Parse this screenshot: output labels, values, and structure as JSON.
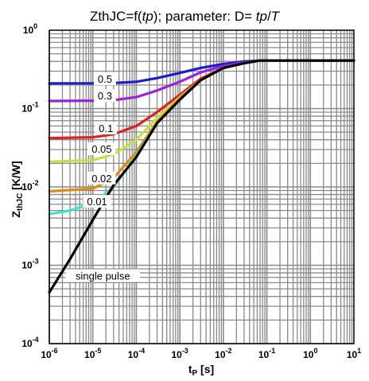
{
  "chart_data": {
    "type": "line",
    "title": {
      "prefix": "ZthJC=f(",
      "tp": "tp",
      "middle": "); parameter: D= ",
      "tp2": "tp",
      "slash": "/",
      "T": "T"
    },
    "xlabel": {
      "main": "t",
      "sub": "P",
      "unit": " [s]"
    },
    "ylabel": {
      "main": "Z",
      "sub": "thJC",
      "unit": " [K/W]"
    },
    "x_scale": "log",
    "y_scale": "log",
    "xlim": [
      1e-06,
      10
    ],
    "ylim": [
      0.0001,
      1
    ],
    "grid": true,
    "x_ticks": [
      {
        "base": "10",
        "exp": "-6",
        "value": 1e-06
      },
      {
        "base": "10",
        "exp": "-5",
        "value": 1e-05
      },
      {
        "base": "10",
        "exp": "-4",
        "value": 0.0001
      },
      {
        "base": "10",
        "exp": "-3",
        "value": 0.001
      },
      {
        "base": "10",
        "exp": "-2",
        "value": 0.01
      },
      {
        "base": "10",
        "exp": "-1",
        "value": 0.1
      },
      {
        "base": "10",
        "exp": "0",
        "value": 1
      },
      {
        "base": "10",
        "exp": "1",
        "value": 10
      }
    ],
    "y_ticks": [
      {
        "base": "10",
        "exp": "-4",
        "value": 0.0001
      },
      {
        "base": "10",
        "exp": "-3",
        "value": 0.001
      },
      {
        "base": "10",
        "exp": "-2",
        "value": 0.01
      },
      {
        "base": "10",
        "exp": "-1",
        "value": 0.1
      },
      {
        "base": "10",
        "exp": "0",
        "value": 1
      }
    ],
    "series": [
      {
        "name": "0.5",
        "color": "#1c1ccc",
        "points": [
          [
            1e-06,
            0.21
          ],
          [
            1e-05,
            0.21
          ],
          [
            3e-05,
            0.212
          ],
          [
            0.0001,
            0.22
          ],
          [
            0.0003,
            0.245
          ],
          [
            0.001,
            0.285
          ],
          [
            0.003,
            0.33
          ],
          [
            0.01,
            0.37
          ],
          [
            0.03,
            0.4
          ],
          [
            0.07,
            0.41
          ],
          [
            10,
            0.41
          ]
        ]
      },
      {
        "name": "0.3",
        "color": "#9a22dd",
        "points": [
          [
            1e-06,
            0.125
          ],
          [
            1e-05,
            0.126
          ],
          [
            3e-05,
            0.128
          ],
          [
            0.0001,
            0.14
          ],
          [
            0.0003,
            0.17
          ],
          [
            0.001,
            0.22
          ],
          [
            0.003,
            0.29
          ],
          [
            0.01,
            0.35
          ],
          [
            0.03,
            0.39
          ],
          [
            0.07,
            0.41
          ],
          [
            10,
            0.41
          ]
        ]
      },
      {
        "name": "0.1",
        "color": "#e02020",
        "points": [
          [
            1e-06,
            0.042
          ],
          [
            1e-05,
            0.043
          ],
          [
            3e-05,
            0.047
          ],
          [
            0.0001,
            0.06
          ],
          [
            0.0003,
            0.09
          ],
          [
            0.001,
            0.15
          ],
          [
            0.003,
            0.24
          ],
          [
            0.01,
            0.33
          ],
          [
            0.03,
            0.38
          ],
          [
            0.07,
            0.41
          ],
          [
            10,
            0.41
          ]
        ]
      },
      {
        "name": "0.05",
        "color": "#c6e040",
        "points": [
          [
            1e-06,
            0.021
          ],
          [
            1e-05,
            0.022
          ],
          [
            3e-05,
            0.026
          ],
          [
            0.0001,
            0.04
          ],
          [
            0.0003,
            0.076
          ],
          [
            0.001,
            0.14
          ],
          [
            0.003,
            0.23
          ],
          [
            0.01,
            0.33
          ],
          [
            0.03,
            0.38
          ],
          [
            0.07,
            0.41
          ],
          [
            10,
            0.41
          ]
        ]
      },
      {
        "name": "0.02",
        "color": "#e08a10",
        "points": [
          [
            1e-06,
            0.0088
          ],
          [
            1e-05,
            0.0095
          ],
          [
            3e-05,
            0.013
          ],
          [
            0.0001,
            0.028
          ],
          [
            0.0003,
            0.068
          ],
          [
            0.001,
            0.135
          ],
          [
            0.003,
            0.23
          ],
          [
            0.01,
            0.33
          ],
          [
            0.03,
            0.38
          ],
          [
            0.07,
            0.41
          ],
          [
            10,
            0.41
          ]
        ]
      },
      {
        "name": "0.01",
        "color": "#40e0d0",
        "points": [
          [
            1e-06,
            0.0045
          ],
          [
            3e-06,
            0.005
          ],
          [
            1e-05,
            0.0062
          ],
          [
            3e-05,
            0.01
          ],
          [
            0.0001,
            0.025
          ],
          [
            0.0003,
            0.065
          ],
          [
            0.001,
            0.13
          ],
          [
            0.003,
            0.23
          ],
          [
            0.01,
            0.33
          ],
          [
            0.03,
            0.38
          ],
          [
            0.07,
            0.41
          ],
          [
            10,
            0.41
          ]
        ]
      },
      {
        "name": "single pulse",
        "color": "#000000",
        "points": [
          [
            1e-06,
            0.00045
          ],
          [
            3e-06,
            0.0012
          ],
          [
            1e-05,
            0.0038
          ],
          [
            3e-05,
            0.0105
          ],
          [
            0.0001,
            0.024
          ],
          [
            0.0003,
            0.065
          ],
          [
            0.001,
            0.13
          ],
          [
            0.003,
            0.23
          ],
          [
            0.01,
            0.33
          ],
          [
            0.03,
            0.38
          ],
          [
            0.07,
            0.41
          ],
          [
            10,
            0.41
          ]
        ]
      }
    ]
  }
}
